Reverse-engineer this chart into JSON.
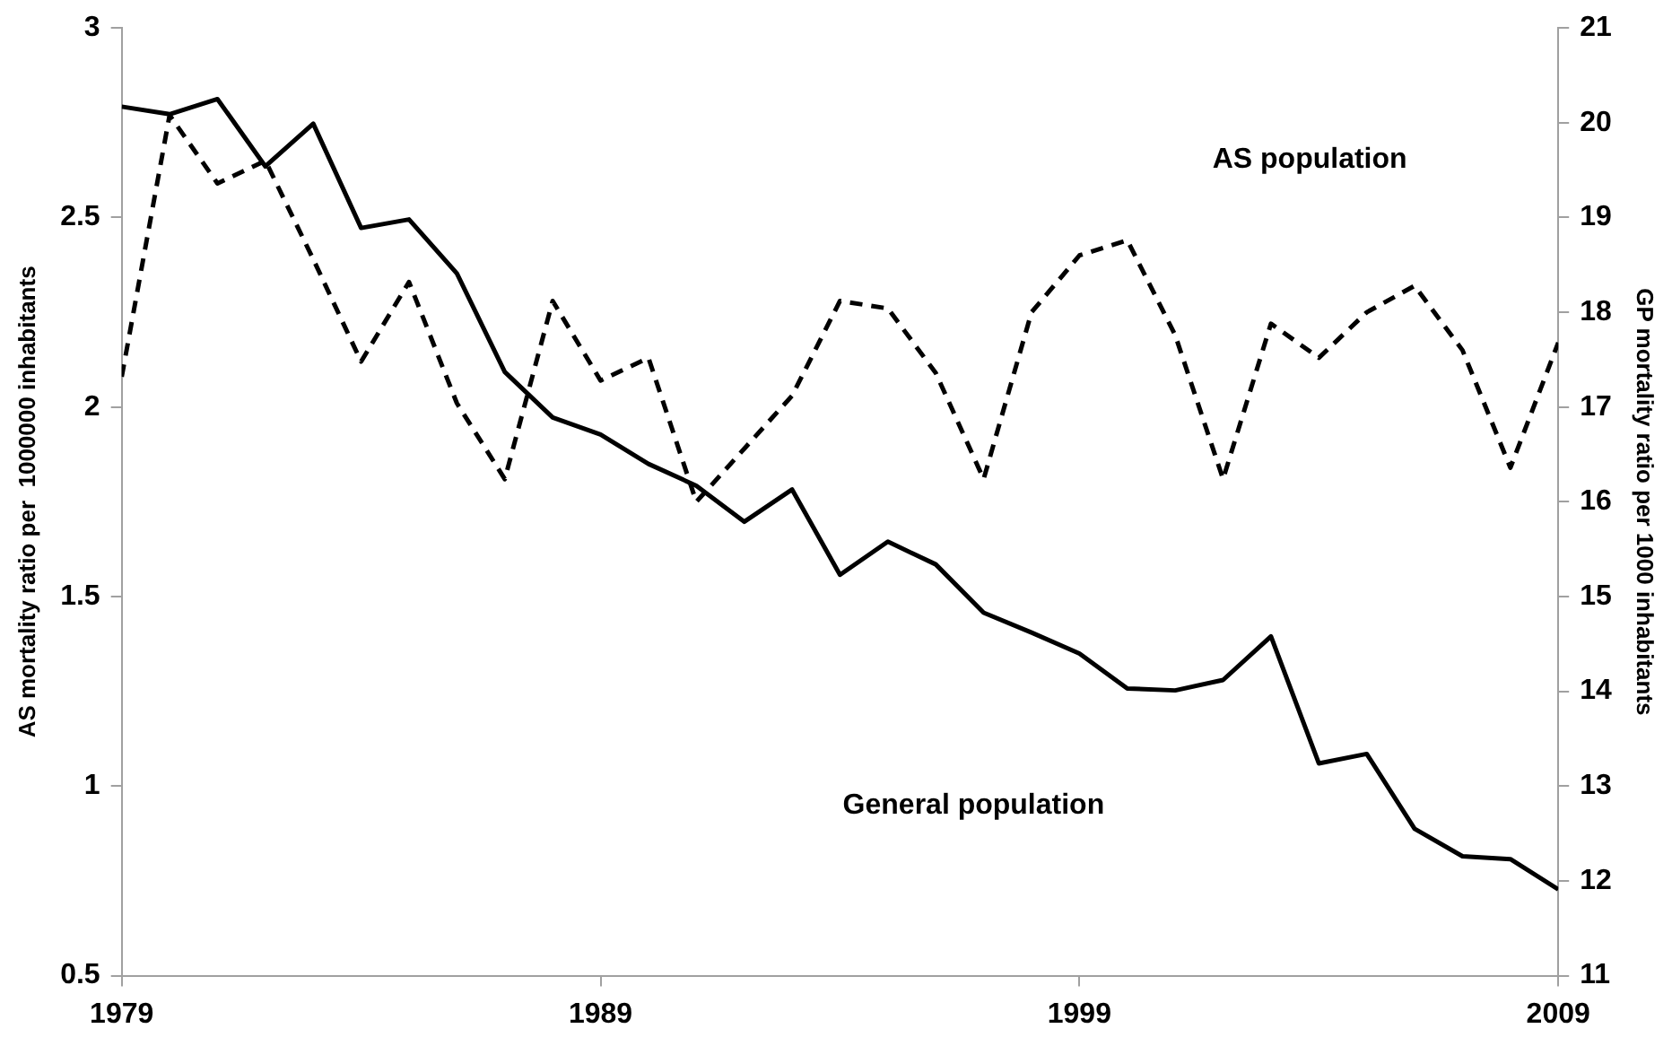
{
  "chart_data": {
    "type": "line",
    "xlabel": null,
    "ylabel": "AS mortality ratio per  1000000 inhabitants",
    "y2label": "GP mortality ratio per 1000 inhabitants",
    "x": [
      1979,
      1980,
      1981,
      1982,
      1983,
      1984,
      1985,
      1986,
      1987,
      1988,
      1989,
      1990,
      1991,
      1992,
      1993,
      1994,
      1995,
      1996,
      1997,
      1998,
      1999,
      2000,
      2001,
      2002,
      2003,
      2004,
      2005,
      2006,
      2007,
      2008,
      2009
    ],
    "series": [
      {
        "color": "#000000",
        "line_style": "dashed",
        "values": [
          2.08,
          2.77,
          2.59,
          2.65,
          2.39,
          2.12,
          2.33,
          2.01,
          1.81,
          2.28,
          2.07,
          2.13,
          1.75,
          1.89,
          2.03,
          2.28,
          2.26,
          2.09,
          1.81,
          2.25,
          2.4,
          2.44,
          2.19,
          1.81,
          2.22,
          2.13,
          2.25,
          2.32,
          2.15,
          1.84,
          2.17
        ]
      },
      {
        "color": "#000000",
        "line_style": "solid",
        "axis": "y2",
        "values": [
          20.17,
          20.09,
          20.25,
          19.54,
          19.99,
          18.89,
          18.98,
          18.41,
          17.37,
          16.89,
          16.71,
          16.4,
          16.17,
          15.79,
          16.13,
          15.23,
          15.58,
          15.34,
          14.83,
          14.62,
          14.4,
          14.03,
          14.01,
          14.12,
          14.58,
          13.24,
          13.34,
          12.55,
          12.26,
          12.23,
          11.91
        ]
      }
    ],
    "xlim": [
      1979,
      2009
    ],
    "xticks": [
      1979,
      1989,
      1999,
      2009
    ],
    "ylim": [
      0.5,
      3
    ],
    "yticks": [
      0.5,
      1,
      1.5,
      2,
      2.5,
      3
    ],
    "y2lim": [
      11,
      21
    ],
    "y2ticks": [
      11,
      12,
      13,
      14,
      15,
      16,
      17,
      18,
      19,
      20,
      21
    ],
    "annotations": [
      "AS population",
      "General population"
    ],
    "grid": false,
    "legend": false,
    "marker": "none"
  }
}
